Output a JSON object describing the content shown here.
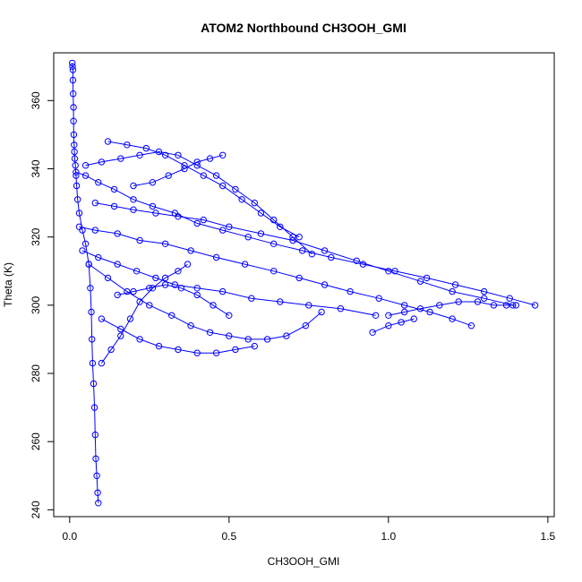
{
  "chart_data": {
    "type": "scatter",
    "title": "ATOM2 Northbound CH3OOH_GMI",
    "xlabel": "CH3OOH_GMI",
    "ylabel": "Theta (K)",
    "xlim": [
      -0.05,
      1.52
    ],
    "ylim": [
      238,
      374
    ],
    "x_ticks": [
      0.0,
      0.5,
      1.0,
      1.5
    ],
    "x_tick_labels": [
      "0.0",
      "0.5",
      "1.0",
      "1.5"
    ],
    "y_ticks": [
      240,
      260,
      280,
      300,
      320,
      340,
      360
    ],
    "y_tick_labels": [
      "240",
      "260",
      "280",
      "300",
      "320",
      "340",
      "360"
    ],
    "marker": "open-circle",
    "connected": true,
    "grid": false,
    "legend": "none",
    "colors": {
      "series": "#0000ff",
      "axes": "#000000",
      "background": "#ffffff"
    },
    "series": [
      {
        "x": [
          0.008,
          0.009,
          0.01,
          0.01,
          0.011,
          0.012,
          0.012,
          0.013,
          0.014,
          0.015,
          0.016,
          0.018,
          0.02,
          0.022,
          0.025,
          0.03,
          0.04,
          0.05,
          0.06,
          0.065,
          0.068,
          0.07,
          0.072,
          0.075,
          0.078,
          0.08,
          0.082,
          0.085,
          0.088,
          0.09
        ],
        "y": [
          371,
          370,
          369,
          366,
          362,
          358,
          354,
          350,
          347,
          345,
          343,
          341,
          338,
          335,
          331,
          327,
          322,
          318,
          312,
          305,
          298,
          290,
          283,
          277,
          270,
          262,
          255,
          250,
          245,
          242
        ]
      },
      {
        "x": [
          0.02,
          0.05,
          0.09,
          0.14,
          0.2,
          0.26,
          0.33,
          0.4,
          0.48,
          0.56,
          0.64,
          0.73,
          0.82,
          0.92,
          1.02,
          1.12,
          1.21,
          1.3,
          1.38,
          1.46
        ],
        "y": [
          339,
          338,
          336,
          334,
          331,
          329,
          327,
          324,
          322,
          320,
          318,
          316,
          314,
          312,
          310,
          308,
          306,
          304,
          302,
          300
        ]
      },
      {
        "x": [
          0.03,
          0.08,
          0.15,
          0.22,
          0.3,
          0.38,
          0.46,
          0.55,
          0.64,
          0.72,
          0.8,
          0.88,
          0.97,
          1.05,
          1.13,
          1.2,
          1.26
        ],
        "y": [
          323,
          322,
          321,
          319,
          318,
          316,
          314,
          312,
          310,
          308,
          306,
          304,
          302,
          300,
          298,
          296,
          294
        ]
      },
      {
        "x": [
          0.05,
          0.1,
          0.16,
          0.22,
          0.28,
          0.34,
          0.4,
          0.46,
          0.52,
          0.58,
          0.64,
          0.7,
          0.76
        ],
        "y": [
          341,
          342,
          343,
          344,
          345,
          344,
          341,
          338,
          334,
          330,
          325,
          320,
          315
        ]
      },
      {
        "x": [
          0.06,
          0.12,
          0.18,
          0.25,
          0.32,
          0.38,
          0.44,
          0.5,
          0.56,
          0.62,
          0.68,
          0.74,
          0.79
        ],
        "y": [
          312,
          308,
          304,
          300,
          297,
          294,
          292,
          291,
          290,
          290,
          291,
          294,
          298
        ]
      },
      {
        "x": [
          0.1,
          0.16,
          0.22,
          0.28,
          0.34,
          0.4,
          0.46,
          0.52,
          0.58
        ],
        "y": [
          296,
          293,
          290,
          288,
          287,
          286,
          286,
          287,
          288
        ]
      },
      {
        "x": [
          0.12,
          0.18,
          0.24,
          0.3,
          0.36,
          0.42,
          0.48,
          0.54,
          0.6,
          0.66,
          0.72
        ],
        "y": [
          348,
          347,
          346,
          344,
          341,
          338,
          335,
          331,
          327,
          323,
          320
        ]
      },
      {
        "x": [
          0.08,
          0.14,
          0.2,
          0.27,
          0.34,
          0.42,
          0.5,
          0.6,
          0.7,
          0.8,
          0.9,
          1.0,
          1.1,
          1.2,
          1.3,
          1.39
        ],
        "y": [
          330,
          329,
          328,
          327,
          326,
          325,
          323,
          321,
          319,
          316,
          313,
          310,
          307,
          304,
          302,
          300
        ]
      },
      {
        "x": [
          0.04,
          0.09,
          0.15,
          0.21,
          0.27,
          0.33,
          0.4,
          0.48,
          0.57,
          0.66,
          0.75,
          0.85,
          0.96
        ],
        "y": [
          316,
          314,
          312,
          310,
          308,
          306,
          305,
          304,
          302,
          301,
          300,
          299,
          297
        ]
      },
      {
        "x": [
          0.1,
          0.13,
          0.16,
          0.19,
          0.22,
          0.26,
          0.3,
          0.34,
          0.37
        ],
        "y": [
          283,
          287,
          291,
          296,
          301,
          305,
          308,
          310,
          312
        ]
      },
      {
        "x": [
          0.15,
          0.2,
          0.25,
          0.3,
          0.35,
          0.4,
          0.45,
          0.5
        ],
        "y": [
          303,
          304,
          305,
          306,
          305,
          303,
          300,
          297
        ]
      },
      {
        "x": [
          0.2,
          0.26,
          0.31,
          0.36,
          0.4,
          0.44,
          0.48
        ],
        "y": [
          335,
          336,
          338,
          340,
          342,
          343,
          344
        ]
      },
      {
        "x": [
          1.0,
          1.05,
          1.1,
          1.16,
          1.22,
          1.28,
          1.33,
          1.37,
          1.4
        ],
        "y": [
          297,
          298,
          299,
          300,
          301,
          301,
          300,
          300,
          300
        ]
      },
      {
        "x": [
          0.95,
          1.0,
          1.04,
          1.08
        ],
        "y": [
          292,
          294,
          295,
          296
        ]
      }
    ]
  }
}
